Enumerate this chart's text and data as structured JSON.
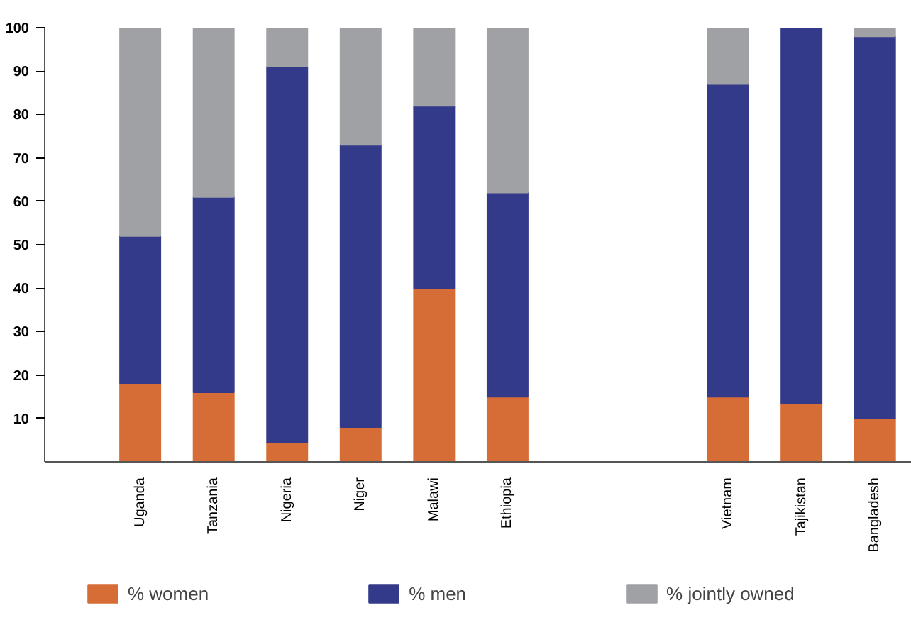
{
  "chart_data": {
    "type": "bar",
    "stacked": true,
    "categories": [
      "Uganda",
      "Tanzania",
      "Nigeria",
      "Niger",
      "Malawi",
      "Ethiopia",
      null,
      null,
      "Vietnam",
      "Tajikistan",
      "Bangladesh"
    ],
    "series": [
      {
        "name": "% women",
        "color": "#d76d36",
        "values": [
          18,
          16,
          4.5,
          8,
          40,
          15,
          null,
          null,
          15,
          13.5,
          10
        ]
      },
      {
        "name": "% men",
        "color": "#343a8a",
        "values": [
          34,
          45,
          86.5,
          65,
          42,
          47,
          null,
          null,
          72,
          86.5,
          88
        ]
      },
      {
        "name": "% jointly owned",
        "color": "#a0a1a5",
        "values": [
          48,
          39,
          9,
          27,
          18,
          38,
          null,
          null,
          13,
          0,
          2
        ]
      }
    ],
    "ylim": [
      0,
      100
    ],
    "yticks": [
      10,
      20,
      30,
      40,
      50,
      60,
      70,
      80,
      90,
      100
    ],
    "grid": false,
    "legend": "bottom"
  }
}
